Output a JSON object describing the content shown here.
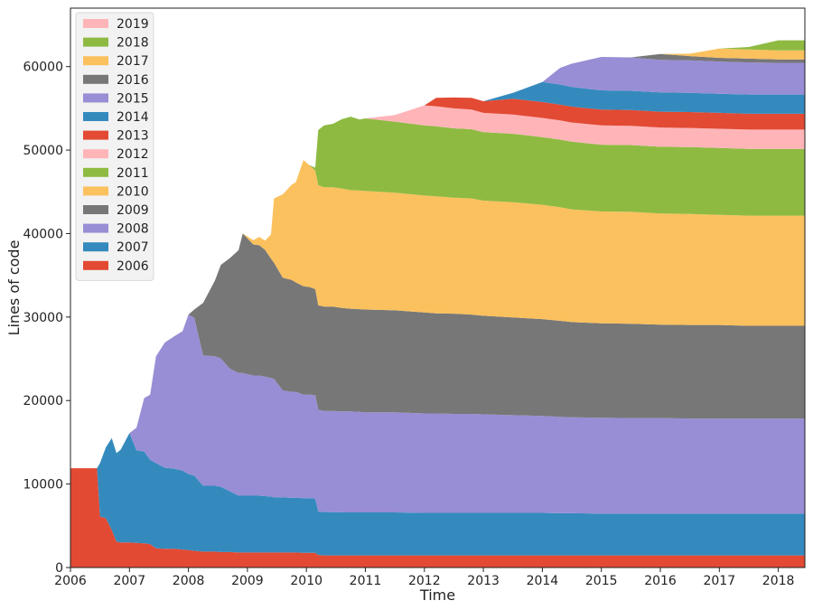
{
  "chart_data": {
    "type": "area",
    "stacked": true,
    "xlabel": "Time",
    "ylabel": "Lines of code",
    "xlim": [
      2006.0,
      2018.45
    ],
    "ylim": [
      0,
      67000
    ],
    "x_ticks": [
      2006,
      2007,
      2008,
      2009,
      2010,
      2011,
      2012,
      2013,
      2014,
      2015,
      2016,
      2017,
      2018
    ],
    "y_ticks": [
      0,
      10000,
      20000,
      30000,
      40000,
      50000,
      60000
    ],
    "grid": false,
    "legend_position": "top-left",
    "x": [
      2006.0,
      2006.45,
      2006.5,
      2006.6,
      2006.7,
      2006.78,
      2006.85,
      2007.0,
      2007.12,
      2007.25,
      2007.35,
      2007.45,
      2007.6,
      2007.75,
      2007.9,
      2008.0,
      2008.1,
      2008.25,
      2008.45,
      2008.55,
      2008.7,
      2008.85,
      2008.92,
      2009.1,
      2009.2,
      2009.3,
      2009.4,
      2009.45,
      2009.6,
      2009.75,
      2009.82,
      2009.95,
      2010.05,
      2010.15,
      2010.2,
      2010.3,
      2010.45,
      2010.6,
      2010.75,
      2010.9,
      2011.0,
      2011.5,
      2012.0,
      2012.2,
      2012.5,
      2012.8,
      2013.0,
      2013.5,
      2014.0,
      2014.3,
      2014.5,
      2015.0,
      2015.5,
      2016.0,
      2016.5,
      2017.0,
      2017.5,
      2018.0,
      2018.45
    ],
    "series": [
      {
        "name": "2006",
        "color": "#E24A33",
        "values": [
          11900,
          11900,
          6100,
          5900,
          4500,
          3100,
          3000,
          3000,
          2950,
          2900,
          2800,
          2300,
          2250,
          2250,
          2150,
          2100,
          2000,
          1900,
          1900,
          1850,
          1850,
          1800,
          1800,
          1800,
          1800,
          1800,
          1800,
          1800,
          1800,
          1800,
          1800,
          1750,
          1750,
          1750,
          1500,
          1450,
          1450,
          1450,
          1450,
          1450,
          1450,
          1450,
          1450,
          1450,
          1450,
          1450,
          1450,
          1450,
          1450,
          1450,
          1450,
          1450,
          1450,
          1450,
          1450,
          1450,
          1450,
          1450,
          1450
        ]
      },
      {
        "name": "2007",
        "color": "#348ABD",
        "values": [
          0,
          0,
          6400,
          8500,
          11000,
          10600,
          11100,
          13100,
          11100,
          11000,
          10100,
          10200,
          9700,
          9600,
          9450,
          9100,
          9000,
          7900,
          7900,
          7800,
          7300,
          6800,
          6800,
          6800,
          6800,
          6750,
          6700,
          6600,
          6600,
          6550,
          6550,
          6550,
          6550,
          6500,
          5200,
          5200,
          5200,
          5150,
          5150,
          5150,
          5150,
          5150,
          5100,
          5100,
          5100,
          5100,
          5100,
          5100,
          5100,
          5050,
          5050,
          5000,
          5000,
          5000,
          5000,
          5000,
          5000,
          5000,
          5000
        ]
      },
      {
        "name": "2008",
        "color": "#988ED5",
        "values": [
          0,
          0,
          0,
          0,
          0,
          0,
          0,
          0,
          2700,
          6400,
          7800,
          12800,
          15000,
          15800,
          16700,
          19100,
          18900,
          15600,
          15500,
          15400,
          14700,
          14700,
          14700,
          14400,
          14400,
          14300,
          14200,
          14200,
          12800,
          12700,
          12700,
          12400,
          12400,
          12400,
          12200,
          12100,
          12100,
          12100,
          12100,
          12050,
          12000,
          12000,
          11900,
          11900,
          11850,
          11850,
          11800,
          11700,
          11600,
          11550,
          11500,
          11500,
          11450,
          11450,
          11400,
          11400,
          11400,
          11400,
          11400
        ]
      },
      {
        "name": "2009",
        "color": "#777777",
        "values": [
          0,
          0,
          0,
          0,
          0,
          0,
          0,
          0,
          0,
          0,
          0,
          0,
          0,
          0,
          0,
          0,
          1000,
          6300,
          9100,
          11200,
          13200,
          14700,
          16700,
          15700,
          15600,
          15200,
          14300,
          13900,
          13500,
          13400,
          13100,
          13000,
          12900,
          12700,
          12500,
          12500,
          12500,
          12400,
          12300,
          12300,
          12300,
          12200,
          12100,
          12000,
          12000,
          11900,
          11800,
          11700,
          11600,
          11500,
          11400,
          11300,
          11300,
          11200,
          11200,
          11200,
          11100,
          11100,
          11100
        ]
      },
      {
        "name": "2010",
        "color": "#FBC15E",
        "values": [
          0,
          0,
          0,
          0,
          0,
          0,
          0,
          0,
          0,
          0,
          0,
          0,
          0,
          0,
          0,
          0,
          0,
          0,
          0,
          0,
          0,
          0,
          0,
          500,
          1000,
          1100,
          2900,
          7700,
          10000,
          11400,
          12000,
          15100,
          14600,
          14200,
          14400,
          14300,
          14300,
          14300,
          14200,
          14200,
          14200,
          14100,
          14000,
          14000,
          13900,
          13900,
          13800,
          13800,
          13700,
          13600,
          13500,
          13400,
          13400,
          13300,
          13300,
          13200,
          13200,
          13200,
          13200
        ]
      },
      {
        "name": "2011",
        "color": "#8EBA42",
        "values": [
          0,
          0,
          0,
          0,
          0,
          0,
          0,
          0,
          0,
          0,
          0,
          0,
          0,
          0,
          0,
          0,
          0,
          0,
          0,
          0,
          0,
          0,
          0,
          0,
          0,
          0,
          0,
          0,
          0,
          0,
          0,
          0,
          0,
          350,
          6600,
          7400,
          7600,
          8300,
          8800,
          8500,
          8700,
          8500,
          8400,
          8400,
          8300,
          8300,
          8200,
          8200,
          8100,
          8100,
          8100,
          8000,
          8000,
          8000,
          8000,
          8000,
          8000,
          8000,
          8000
        ]
      },
      {
        "name": "2012",
        "color": "#FFB5B8",
        "values": [
          0,
          0,
          0,
          0,
          0,
          0,
          0,
          0,
          0,
          0,
          0,
          0,
          0,
          0,
          0,
          0,
          0,
          0,
          0,
          0,
          0,
          0,
          0,
          0,
          0,
          0,
          0,
          0,
          0,
          0,
          0,
          0,
          0,
          0,
          0,
          0,
          0,
          0,
          0,
          0,
          0,
          800,
          2400,
          2400,
          2400,
          2350,
          2300,
          2300,
          2300,
          2300,
          2300,
          2300,
          2300,
          2300,
          2300,
          2300,
          2300,
          2300,
          2300
        ]
      },
      {
        "name": "2013",
        "color": "#E24A33",
        "values": [
          0,
          0,
          0,
          0,
          0,
          0,
          0,
          0,
          0,
          0,
          0,
          0,
          0,
          0,
          0,
          0,
          0,
          0,
          0,
          0,
          0,
          0,
          0,
          0,
          0,
          0,
          0,
          0,
          0,
          0,
          0,
          0,
          0,
          0,
          0,
          0,
          0,
          0,
          0,
          0,
          0,
          0,
          0,
          1000,
          1300,
          1400,
          1400,
          1900,
          1900,
          1900,
          1900,
          1900,
          1900,
          1900,
          1900,
          1900,
          1900,
          1900,
          1900
        ]
      },
      {
        "name": "2014",
        "color": "#348ABD",
        "values": [
          0,
          0,
          0,
          0,
          0,
          0,
          0,
          0,
          0,
          0,
          0,
          0,
          0,
          0,
          0,
          0,
          0,
          0,
          0,
          0,
          0,
          0,
          0,
          0,
          0,
          0,
          0,
          0,
          0,
          0,
          0,
          0,
          0,
          0,
          0,
          0,
          0,
          0,
          0,
          0,
          0,
          0,
          0,
          0,
          0,
          0,
          0,
          700,
          2400,
          2400,
          2350,
          2300,
          2300,
          2300,
          2300,
          2300,
          2300,
          2300,
          2300
        ]
      },
      {
        "name": "2015",
        "color": "#988ED5",
        "values": [
          0,
          0,
          0,
          0,
          0,
          0,
          0,
          0,
          0,
          0,
          0,
          0,
          0,
          0,
          0,
          0,
          0,
          0,
          0,
          0,
          0,
          0,
          0,
          0,
          0,
          0,
          0,
          0,
          0,
          0,
          0,
          0,
          0,
          0,
          0,
          0,
          0,
          0,
          0,
          0,
          0,
          0,
          0,
          0,
          0,
          0,
          0,
          0,
          0,
          2000,
          2800,
          4000,
          4000,
          3900,
          3900,
          3850,
          3850,
          3800,
          3800
        ]
      },
      {
        "name": "2016",
        "color": "#777777",
        "values": [
          0,
          0,
          0,
          0,
          0,
          0,
          0,
          0,
          0,
          0,
          0,
          0,
          0,
          0,
          0,
          0,
          0,
          0,
          0,
          0,
          0,
          0,
          0,
          0,
          0,
          0,
          0,
          0,
          0,
          0,
          0,
          0,
          0,
          0,
          0,
          0,
          0,
          0,
          0,
          0,
          0,
          0,
          0,
          0,
          0,
          0,
          0,
          0,
          0,
          0,
          0,
          0,
          0,
          700,
          500,
          450,
          450,
          400,
          400
        ]
      },
      {
        "name": "2017",
        "color": "#FBC15E",
        "values": [
          0,
          0,
          0,
          0,
          0,
          0,
          0,
          0,
          0,
          0,
          0,
          0,
          0,
          0,
          0,
          0,
          0,
          0,
          0,
          0,
          0,
          0,
          0,
          0,
          0,
          0,
          0,
          0,
          0,
          0,
          0,
          0,
          0,
          0,
          0,
          0,
          0,
          0,
          0,
          0,
          0,
          0,
          0,
          0,
          0,
          0,
          0,
          0,
          0,
          0,
          0,
          0,
          0,
          0,
          300,
          1100,
          1100,
          1100,
          1100
        ]
      },
      {
        "name": "2018",
        "color": "#8EBA42",
        "values": [
          0,
          0,
          0,
          0,
          0,
          0,
          0,
          0,
          0,
          0,
          0,
          0,
          0,
          0,
          0,
          0,
          0,
          0,
          0,
          0,
          0,
          0,
          0,
          0,
          0,
          0,
          0,
          0,
          0,
          0,
          0,
          0,
          0,
          0,
          0,
          0,
          0,
          0,
          0,
          0,
          0,
          0,
          0,
          0,
          0,
          0,
          0,
          0,
          0,
          0,
          0,
          0,
          0,
          0,
          0,
          0,
          300,
          1200,
          1200
        ]
      },
      {
        "name": "2019",
        "color": "#FFB5B8",
        "values": [
          0,
          0,
          0,
          0,
          0,
          0,
          0,
          0,
          0,
          0,
          0,
          0,
          0,
          0,
          0,
          0,
          0,
          0,
          0,
          0,
          0,
          0,
          0,
          0,
          0,
          0,
          0,
          0,
          0,
          0,
          0,
          0,
          0,
          0,
          0,
          0,
          0,
          0,
          0,
          0,
          0,
          0,
          0,
          0,
          0,
          0,
          0,
          0,
          0,
          0,
          0,
          0,
          0,
          0,
          0,
          0,
          0,
          0,
          0
        ]
      }
    ]
  }
}
